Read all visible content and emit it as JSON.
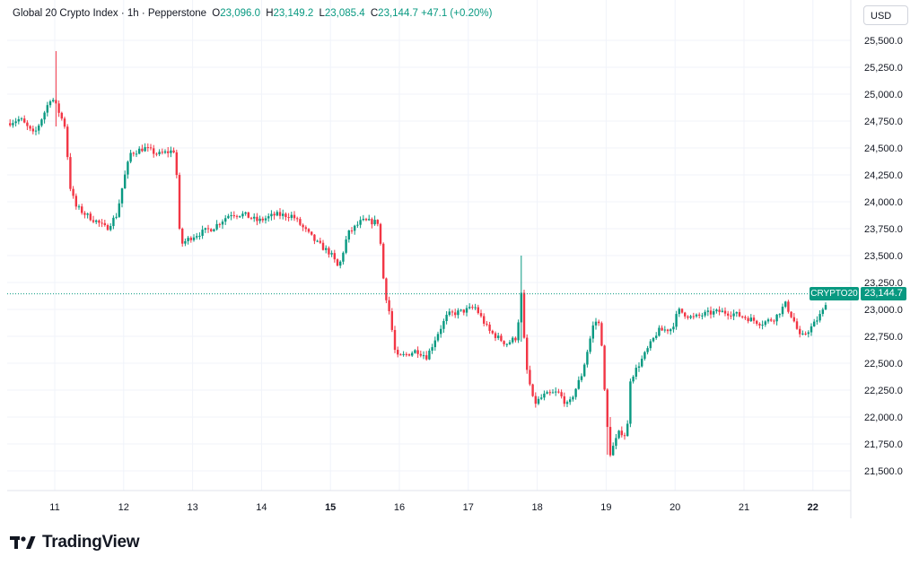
{
  "header": {
    "symbol_title": "Global 20 Crypto Index · 1h · Pepperstone",
    "open_label": "O",
    "open": "23,096.0",
    "high_label": "H",
    "high": "23,149.2",
    "low_label": "L",
    "low": "23,085.4",
    "close_label": "C",
    "close": "23,144.7",
    "change": "+47.1 (+0.20%)"
  },
  "currency_button": "USD",
  "price_tag": "23,144.7",
  "symbol_tag": "CRYPTO20",
  "brand": "TradingView",
  "colors": {
    "up": "#089981",
    "down": "#f23645",
    "grid": "#f0f3fa"
  },
  "chart_data": {
    "type": "candlestick",
    "ylim": [
      21360,
      25640
    ],
    "y_ticks": [
      "25,500.0",
      "25,250.0",
      "25,000.0",
      "24,750.0",
      "24,500.0",
      "24,250.0",
      "24,000.0",
      "23,750.0",
      "23,500.0",
      "23,250.0",
      "23,000.0",
      "22,750.0",
      "22,500.0",
      "22,250.0",
      "22,000.0",
      "21,750.0",
      "21,500.0"
    ],
    "x_ticks": [
      {
        "label": "11",
        "day": 11,
        "bold": false
      },
      {
        "label": "12",
        "day": 12,
        "bold": false
      },
      {
        "label": "13",
        "day": 13,
        "bold": false
      },
      {
        "label": "14",
        "day": 14,
        "bold": false
      },
      {
        "label": "15",
        "day": 15,
        "bold": true
      },
      {
        "label": "16",
        "day": 16,
        "bold": false
      },
      {
        "label": "17",
        "day": 17,
        "bold": false
      },
      {
        "label": "18",
        "day": 18,
        "bold": false
      },
      {
        "label": "19",
        "day": 19,
        "bold": false
      },
      {
        "label": "20",
        "day": 20,
        "bold": false
      },
      {
        "label": "21",
        "day": 21,
        "bold": false
      },
      {
        "label": "22",
        "day": 22,
        "bold": true
      }
    ],
    "x_start_day": 10.31,
    "last_price": 23144.7,
    "path_points": [
      [
        10.31,
        24730
      ],
      [
        10.5,
        24770
      ],
      [
        10.7,
        24620
      ],
      [
        10.85,
        24830
      ],
      [
        10.95,
        24980
      ],
      [
        11.05,
        24850
      ],
      [
        11.15,
        24700
      ],
      [
        11.22,
        24150
      ],
      [
        11.3,
        23960
      ],
      [
        11.45,
        23880
      ],
      [
        11.6,
        23820
      ],
      [
        11.75,
        23750
      ],
      [
        11.9,
        23880
      ],
      [
        12.0,
        24200
      ],
      [
        12.1,
        24450
      ],
      [
        12.3,
        24500
      ],
      [
        12.5,
        24440
      ],
      [
        12.75,
        24480
      ],
      [
        12.82,
        23600
      ],
      [
        13.0,
        23680
      ],
      [
        13.3,
        23760
      ],
      [
        13.55,
        23890
      ],
      [
        13.75,
        23880
      ],
      [
        13.95,
        23820
      ],
      [
        14.2,
        23880
      ],
      [
        14.45,
        23870
      ],
      [
        14.6,
        23760
      ],
      [
        14.8,
        23620
      ],
      [
        15.0,
        23520
      ],
      [
        15.12,
        23380
      ],
      [
        15.25,
        23700
      ],
      [
        15.45,
        23820
      ],
      [
        15.7,
        23810
      ],
      [
        15.78,
        23200
      ],
      [
        15.86,
        22960
      ],
      [
        15.95,
        22550
      ],
      [
        16.1,
        22580
      ],
      [
        16.25,
        22620
      ],
      [
        16.4,
        22560
      ],
      [
        16.55,
        22770
      ],
      [
        16.7,
        22950
      ],
      [
        16.9,
        22980
      ],
      [
        17.1,
        23020
      ],
      [
        17.3,
        22800
      ],
      [
        17.55,
        22680
      ],
      [
        17.7,
        22740
      ],
      [
        17.77,
        23150
      ],
      [
        17.83,
        22500
      ],
      [
        17.95,
        22120
      ],
      [
        18.1,
        22200
      ],
      [
        18.3,
        22230
      ],
      [
        18.45,
        22100
      ],
      [
        18.65,
        22400
      ],
      [
        18.83,
        22900
      ],
      [
        18.92,
        22850
      ],
      [
        18.98,
        22200
      ],
      [
        19.05,
        21650
      ],
      [
        19.2,
        21870
      ],
      [
        19.3,
        21820
      ],
      [
        19.35,
        22350
      ],
      [
        19.55,
        22570
      ],
      [
        19.75,
        22800
      ],
      [
        19.95,
        22820
      ],
      [
        20.05,
        22990
      ],
      [
        20.25,
        22920
      ],
      [
        20.45,
        22960
      ],
      [
        20.65,
        22980
      ],
      [
        20.85,
        22960
      ],
      [
        21.05,
        22920
      ],
      [
        21.25,
        22870
      ],
      [
        21.45,
        22920
      ],
      [
        21.6,
        23050
      ],
      [
        21.72,
        22900
      ],
      [
        21.82,
        22730
      ],
      [
        22.0,
        22850
      ],
      [
        22.15,
        22990
      ],
      [
        22.22,
        23144.7
      ]
    ],
    "spikes": [
      {
        "day": 11.02,
        "high": 25400,
        "low": 24700
      },
      {
        "day": 17.77,
        "high": 23500,
        "low": 22700
      },
      {
        "day": 19.04,
        "high": 22000,
        "low": 21650
      },
      {
        "day": 22.22,
        "high": 23330,
        "low": 23050
      }
    ]
  }
}
